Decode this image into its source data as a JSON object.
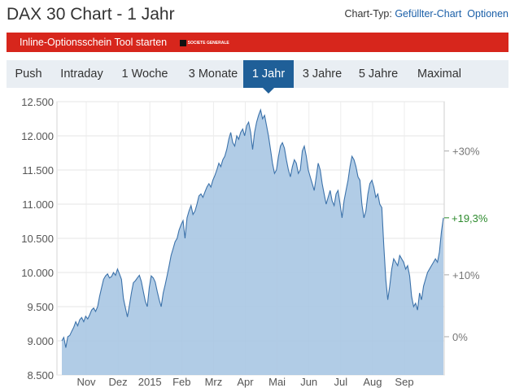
{
  "header": {
    "title": "DAX 30 Chart - 1 Jahr",
    "chart_type_label": "Chart-Typ:",
    "chart_type_value": "Gefüllter-Chart",
    "options_label": "Optionen"
  },
  "promo": {
    "label": "Inline-Optionsschein Tool starten",
    "logo_text": "SOCIETE GENERALE"
  },
  "tabs": [
    {
      "label": "Push"
    },
    {
      "label": "Intraday"
    },
    {
      "label": "1 Woche"
    },
    {
      "label": "3 Monate"
    },
    {
      "label": "1 Jahr",
      "active": true
    },
    {
      "label": "3 Jahre"
    },
    {
      "label": "5 Jahre"
    },
    {
      "label": "Maximal"
    }
  ],
  "colors": {
    "accent": "#1f5f98",
    "promo_red": "#d7261c",
    "fill": "#a9c6e3",
    "line": "#3c72aa",
    "positive": "#2e8b2e"
  },
  "chart_data": {
    "type": "area",
    "ylim": [
      8500,
      12500
    ],
    "yticks": [
      "12.500",
      "12.000",
      "11.500",
      "11.000",
      "10.500",
      "10.000",
      "9.500",
      "9.000",
      "8.500"
    ],
    "ytick_values": [
      12500,
      12000,
      11500,
      11000,
      10500,
      10000,
      9500,
      9000,
      8500
    ],
    "xticks": [
      "Nov",
      "Dez",
      "2015",
      "Feb",
      "Mrz",
      "Apr",
      "Mai",
      "Jun",
      "Jul",
      "Aug",
      "Sep"
    ],
    "right_axis": {
      "labels": [
        "+30%",
        "+10%",
        "0%"
      ],
      "values": [
        30,
        10,
        0
      ],
      "base": 9060
    },
    "current_change": "+19,3%",
    "grid": true,
    "series": [
      {
        "values": [
          9000,
          9050,
          8900,
          9060,
          9080,
          9140,
          9200,
          9280,
          9220,
          9310,
          9340,
          9280,
          9360,
          9320,
          9380,
          9450,
          9480,
          9430,
          9500,
          9650,
          9780,
          9900,
          9950,
          9980,
          9920,
          9940,
          10000,
          9960,
          10050,
          9980,
          9900,
          9620,
          9480,
          9350,
          9520,
          9700,
          9850,
          9880,
          9920,
          9960,
          9870,
          9720,
          9580,
          9500,
          9780,
          9950,
          9920,
          9860,
          9720,
          9600,
          9500,
          9700,
          9820,
          9960,
          10100,
          10250,
          10350,
          10450,
          10500,
          10620,
          10700,
          10760,
          10500,
          10800,
          10900,
          10980,
          10850,
          10900,
          11000,
          11120,
          11150,
          11100,
          11180,
          11250,
          11300,
          11250,
          11350,
          11420,
          11500,
          11600,
          11550,
          11650,
          11700,
          11800,
          11950,
          12050,
          11900,
          11850,
          12000,
          11950,
          12050,
          12100,
          12000,
          12150,
          12200,
          12050,
          11800,
          12050,
          12200,
          12300,
          12380,
          12250,
          12300,
          12150,
          12000,
          11800,
          11600,
          11450,
          11500,
          11700,
          11850,
          11900,
          11820,
          11650,
          11500,
          11400,
          11550,
          11650,
          11600,
          11450,
          11500,
          11780,
          11850,
          11700,
          11500,
          11400,
          11300,
          11200,
          11400,
          11600,
          11500,
          11300,
          11150,
          11000,
          11100,
          11200,
          11050,
          10980,
          11150,
          11200,
          11000,
          10800,
          11050,
          11200,
          11350,
          11550,
          11700,
          11650,
          11550,
          11400,
          11350,
          11000,
          10800,
          10900,
          11150,
          11300,
          11350,
          11250,
          11100,
          11150,
          11000,
          10950,
          10400,
          9900,
          9600,
          9800,
          10050,
          10200,
          10150,
          10100,
          10250,
          10200,
          10150,
          10050,
          10100,
          9950,
          9650,
          9500,
          9550,
          9450,
          9700,
          9600,
          9800,
          9900,
          10000,
          10050,
          10100,
          10150,
          10200,
          10150,
          10300,
          10600,
          10800
        ]
      }
    ]
  }
}
